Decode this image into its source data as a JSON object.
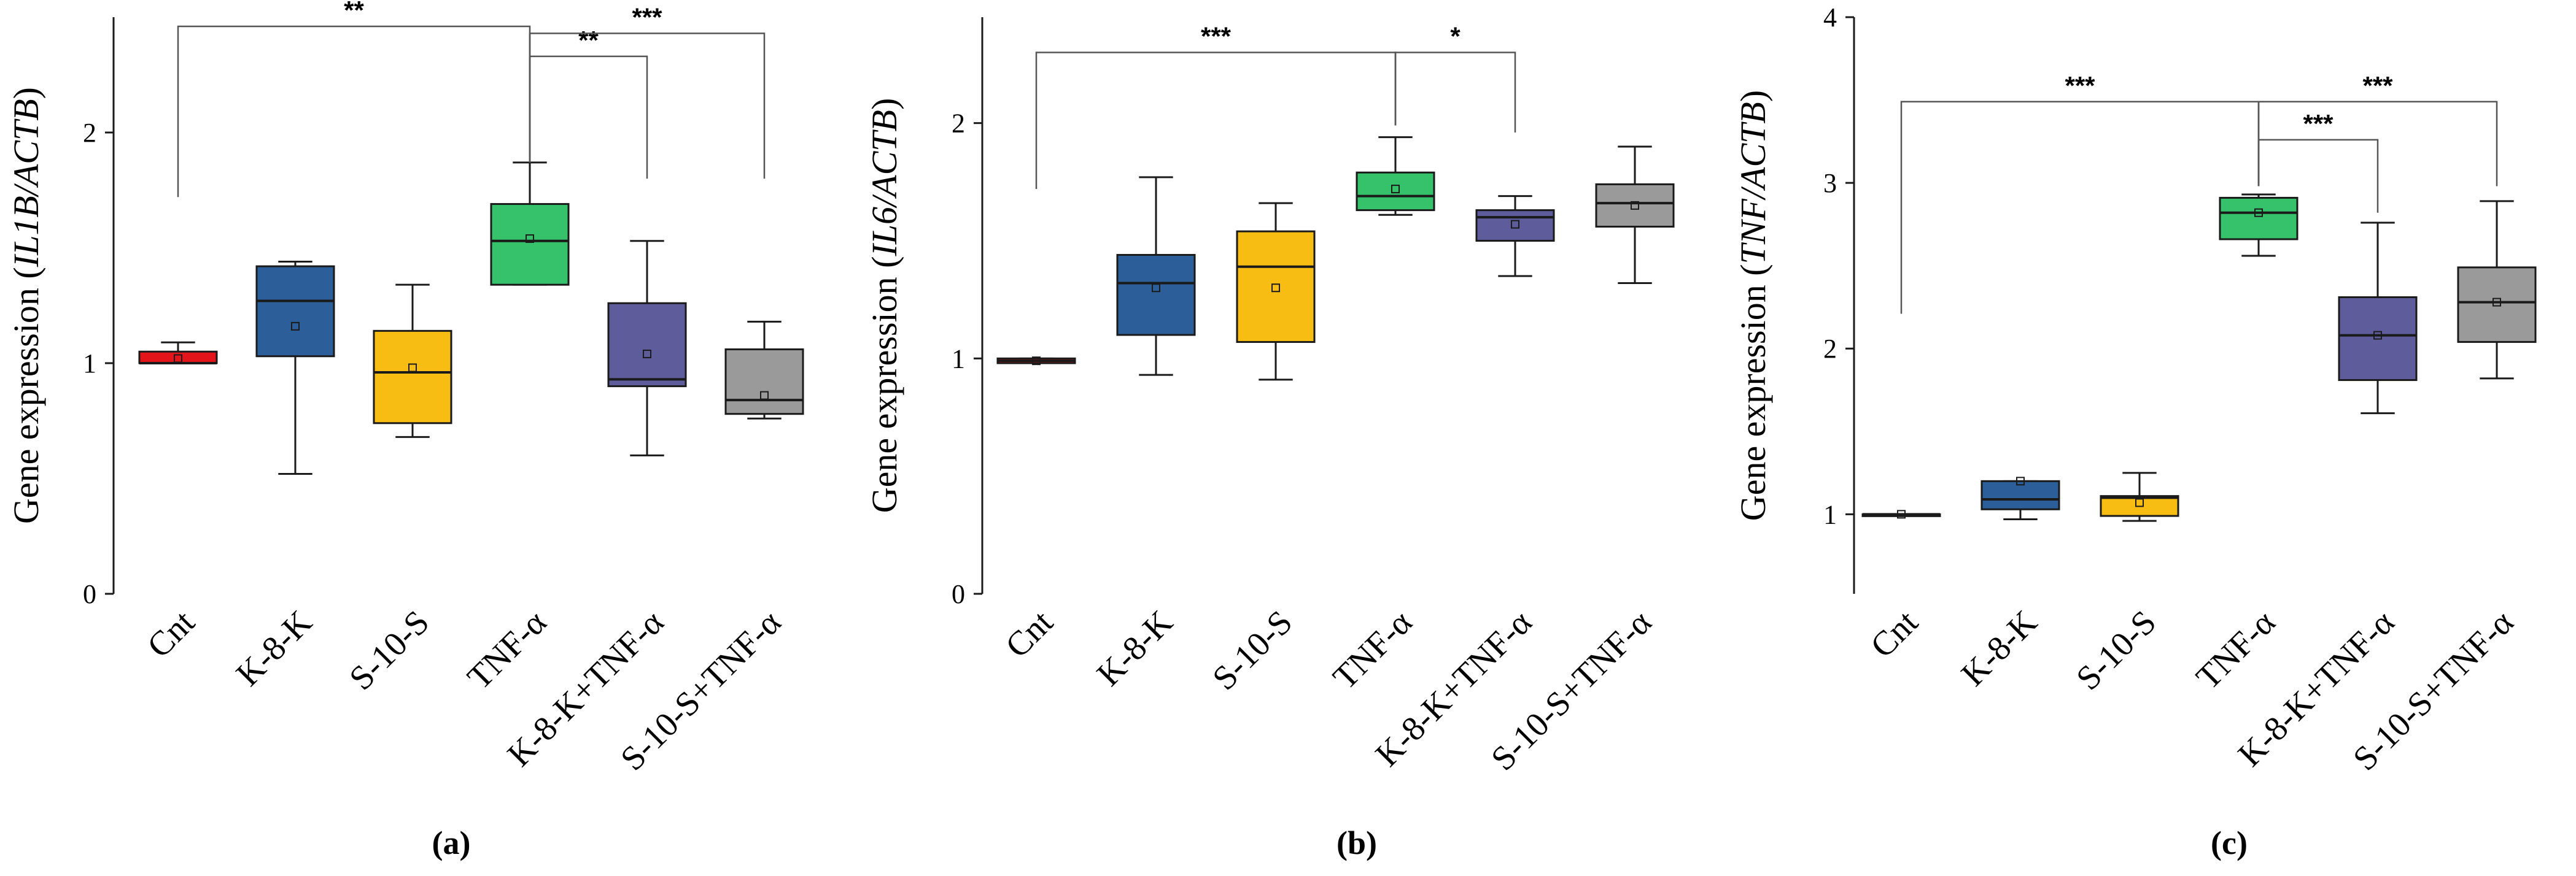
{
  "chart_data": [
    {
      "type": "box",
      "panel_label": "(a)",
      "ylabel_prefix": "Gene expression (",
      "ylabel_gene": "IL1B/ACTB",
      "ylabel_suffix": ")",
      "ylim": [
        0,
        2.5
      ],
      "yticks": [
        0,
        1,
        2
      ],
      "ytick_labels": [
        "0",
        "1",
        "2"
      ],
      "categories": [
        "Cnt",
        "K-8-K",
        "S-10-S",
        "TNF-α",
        "K-8-K+TNF-α",
        "S-10-S+TNF-α"
      ],
      "colors": [
        "#e3151b",
        "#2c5f9a",
        "#f7bd12",
        "#35c26a",
        "#5e5c9a",
        "#9a9a9a"
      ],
      "boxes": [
        {
          "min": 1.0,
          "q1": 1.0,
          "median": 1.0,
          "q3": 1.05,
          "max": 1.09,
          "mean": 1.02
        },
        {
          "min": 0.52,
          "q1": 1.03,
          "median": 1.27,
          "q3": 1.42,
          "max": 1.44,
          "mean": 1.16
        },
        {
          "min": 0.68,
          "q1": 0.74,
          "median": 0.96,
          "q3": 1.14,
          "max": 1.34,
          "mean": 0.98
        },
        {
          "min": 1.34,
          "q1": 1.34,
          "median": 1.53,
          "q3": 1.69,
          "max": 1.87,
          "mean": 1.54
        },
        {
          "min": 0.6,
          "q1": 0.9,
          "median": 0.93,
          "q3": 1.26,
          "max": 1.53,
          "mean": 1.04
        },
        {
          "min": 0.76,
          "q1": 0.78,
          "median": 0.84,
          "q3": 1.06,
          "max": 1.18,
          "mean": 0.86
        }
      ],
      "brackets": [
        {
          "from": 0,
          "to": 3,
          "y": 2.46,
          "label": "**",
          "left_drop": 1.72,
          "right_drop": 1.87
        },
        {
          "from": 3,
          "to": 4,
          "y": 2.33,
          "label": "**",
          "left_drop": 1.87,
          "right_drop": 1.8
        },
        {
          "from": 3,
          "to": 5,
          "y": 2.43,
          "label": "***",
          "left_drop": 1.87,
          "right_drop": 1.8
        }
      ]
    },
    {
      "type": "box",
      "panel_label": "(b)",
      "ylabel_prefix": "Gene expression (",
      "ylabel_gene": "IL6/ACTB",
      "ylabel_suffix": ")",
      "ylim": [
        0,
        2.45
      ],
      "yticks": [
        0,
        1,
        2
      ],
      "ytick_labels": [
        "0",
        "1",
        "2"
      ],
      "categories": [
        "Cnt",
        "K-8-K",
        "S-10-S",
        "TNF-α",
        "K-8-K+TNF-α",
        "S-10-S+TNF-α"
      ],
      "colors": [
        "#e3151b",
        "#2c5f9a",
        "#f7bd12",
        "#35c26a",
        "#5e5c9a",
        "#9a9a9a"
      ],
      "boxes": [
        {
          "min": 0.98,
          "q1": 0.98,
          "median": 0.99,
          "q3": 1.0,
          "max": 1.0,
          "mean": 0.99
        },
        {
          "min": 0.93,
          "q1": 1.1,
          "median": 1.32,
          "q3": 1.44,
          "max": 1.77,
          "mean": 1.3
        },
        {
          "min": 0.91,
          "q1": 1.07,
          "median": 1.39,
          "q3": 1.54,
          "max": 1.66,
          "mean": 1.3
        },
        {
          "min": 1.61,
          "q1": 1.63,
          "median": 1.69,
          "q3": 1.79,
          "max": 1.94,
          "mean": 1.72
        },
        {
          "min": 1.35,
          "q1": 1.5,
          "median": 1.6,
          "q3": 1.63,
          "max": 1.69,
          "mean": 1.57
        },
        {
          "min": 1.32,
          "q1": 1.56,
          "median": 1.66,
          "q3": 1.74,
          "max": 1.9,
          "mean": 1.65
        }
      ],
      "brackets": [
        {
          "from": 0,
          "to": 3,
          "y": 2.3,
          "label": "***",
          "left_drop": 1.72,
          "right_drop": 1.99
        },
        {
          "from": 3,
          "to": 4,
          "y": 2.3,
          "label": "*",
          "left_drop": 1.99,
          "right_drop": 1.96
        }
      ]
    },
    {
      "type": "box",
      "panel_label": "(c)",
      "ylabel_prefix": "Gene expression (",
      "ylabel_gene": "TNF/ACTB",
      "ylabel_suffix": ")",
      "ylim": [
        0.52,
        4
      ],
      "yticks": [
        1,
        2,
        3,
        4
      ],
      "ytick_labels": [
        "1",
        "2",
        "3",
        "4"
      ],
      "categories": [
        "Cnt",
        "K-8-K",
        "S-10-S",
        "TNF-α",
        "K-8-K+TNF-α",
        "S-10-S+TNF-α"
      ],
      "colors": [
        "#e3151b",
        "#2c5f9a",
        "#f7bd12",
        "#35c26a",
        "#5e5c9a",
        "#9a9a9a"
      ],
      "boxes": [
        {
          "min": 1.0,
          "q1": 1.0,
          "median": 1.0,
          "q3": 1.0,
          "max": 1.0,
          "mean": 1.0
        },
        {
          "min": 0.97,
          "q1": 1.03,
          "median": 1.09,
          "q3": 1.2,
          "max": 1.2,
          "mean": 1.2
        },
        {
          "min": 0.96,
          "q1": 0.99,
          "median": 1.1,
          "q3": 1.11,
          "max": 1.25,
          "mean": 1.07
        },
        {
          "min": 2.56,
          "q1": 2.66,
          "median": 2.82,
          "q3": 2.91,
          "max": 2.93,
          "mean": 2.82
        },
        {
          "min": 1.61,
          "q1": 1.81,
          "median": 2.08,
          "q3": 2.31,
          "max": 2.76,
          "mean": 2.08
        },
        {
          "min": 1.82,
          "q1": 2.04,
          "median": 2.28,
          "q3": 2.49,
          "max": 2.89,
          "mean": 2.28
        }
      ],
      "brackets": [
        {
          "from": 0,
          "to": 3,
          "y": 3.49,
          "label": "***",
          "left_drop": 2.21,
          "right_drop": 2.98
        },
        {
          "from": 3,
          "to": 4,
          "y": 3.26,
          "label": "***",
          "left_drop": 2.98,
          "right_drop": 2.82
        },
        {
          "from": 3,
          "to": 5,
          "y": 3.49,
          "label": "***",
          "left_drop": 2.98,
          "right_drop": 2.98
        }
      ]
    }
  ]
}
